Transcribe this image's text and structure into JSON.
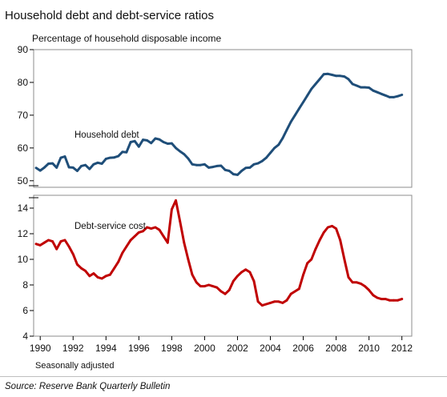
{
  "chart_data": {
    "type": "line",
    "title": "Household debt and debt-service ratios",
    "ylabel": "Percentage of household disposable income",
    "note": "Seasonally adjusted",
    "source": "Source: Reserve Bank Quarterly Bulletin",
    "colors": {
      "debt": "#1f4e79",
      "service": "#c00000",
      "axis": "#000000",
      "frame": "#8c8c8c"
    },
    "x_ticks": [
      1990,
      1992,
      1994,
      1996,
      1998,
      2000,
      2002,
      2004,
      2006,
      2008,
      2010,
      2012
    ],
    "xlim": [
      1989.6,
      2012.6
    ],
    "panels": [
      {
        "name": "debt",
        "ylim": [
          48,
          90
        ],
        "y_ticks": [
          50,
          60,
          70,
          80,
          90
        ],
        "series": [
          {
            "name": "Household debt",
            "x": [
              1989.75,
              1990,
              1990.25,
              1990.5,
              1990.75,
              1991,
              1991.25,
              1991.5,
              1991.75,
              1992,
              1992.25,
              1992.5,
              1992.75,
              1993,
              1993.25,
              1993.5,
              1993.75,
              1994,
              1994.25,
              1994.5,
              1994.75,
              1995,
              1995.25,
              1995.5,
              1995.75,
              1996,
              1996.25,
              1996.5,
              1996.75,
              1997,
              1997.25,
              1997.5,
              1997.75,
              1998,
              1998.25,
              1998.5,
              1998.75,
              1999,
              1999.25,
              1999.5,
              1999.75,
              2000,
              2000.25,
              2000.5,
              2000.75,
              2001,
              2001.25,
              2001.5,
              2001.75,
              2002,
              2002.25,
              2002.5,
              2002.75,
              2003,
              2003.25,
              2003.5,
              2003.75,
              2004,
              2004.25,
              2004.5,
              2004.75,
              2005,
              2005.25,
              2005.5,
              2005.75,
              2006,
              2006.25,
              2006.5,
              2006.75,
              2007,
              2007.25,
              2007.5,
              2007.75,
              2008,
              2008.25,
              2008.5,
              2008.75,
              2009,
              2009.25,
              2009.5,
              2009.75,
              2010,
              2010.25,
              2010.5,
              2010.75,
              2011,
              2011.25,
              2011.5,
              2011.75,
              2012
            ],
            "values": [
              53.9,
              53.1,
              54.0,
              55.2,
              55.3,
              54.0,
              57.0,
              57.4,
              54.1,
              54.0,
              53.0,
              54.5,
              54.8,
              53.6,
              55.0,
              55.5,
              55.2,
              56.7,
              57.0,
              57.1,
              57.5,
              58.8,
              58.7,
              61.8,
              62.1,
              60.4,
              62.5,
              62.3,
              61.5,
              62.9,
              62.6,
              61.8,
              61.3,
              61.4,
              60.0,
              59.0,
              58.1,
              56.8,
              55.0,
              54.8,
              54.8,
              55.0,
              54.0,
              54.2,
              54.5,
              54.6,
              53.3,
              53.0,
              52.0,
              51.8,
              53.0,
              53.9,
              54.0,
              55.0,
              55.3,
              56.0,
              57.0,
              58.5,
              60.0,
              61.0,
              63.0,
              65.5,
              68.0,
              70.0,
              72.0,
              74.0,
              76.0,
              78.0,
              79.5,
              81.0,
              82.5,
              82.6,
              82.3,
              82.0,
              82.0,
              81.8,
              81.0,
              79.5,
              79.0,
              78.5,
              78.5,
              78.4,
              77.5,
              77.0,
              76.5,
              76.0,
              75.5,
              75.5,
              75.8,
              76.2
            ]
          }
        ]
      },
      {
        "name": "service",
        "ylim": [
          4,
          15
        ],
        "y_ticks": [
          4,
          6,
          8,
          10,
          12,
          14
        ],
        "series": [
          {
            "name": "Debt-service cost",
            "x": [
              1989.75,
              1990,
              1990.25,
              1990.5,
              1990.75,
              1991,
              1991.25,
              1991.5,
              1991.75,
              1992,
              1992.25,
              1992.5,
              1992.75,
              1993,
              1993.25,
              1993.5,
              1993.75,
              1994,
              1994.25,
              1994.5,
              1994.75,
              1995,
              1995.25,
              1995.5,
              1995.75,
              1996,
              1996.25,
              1996.5,
              1996.75,
              1997,
              1997.25,
              1997.5,
              1997.75,
              1998,
              1998.25,
              1998.5,
              1998.75,
              1999,
              1999.25,
              1999.5,
              1999.75,
              2000,
              2000.25,
              2000.5,
              2000.75,
              2001,
              2001.25,
              2001.5,
              2001.75,
              2002,
              2002.25,
              2002.5,
              2002.75,
              2003,
              2003.25,
              2003.5,
              2003.75,
              2004,
              2004.25,
              2004.5,
              2004.75,
              2005,
              2005.25,
              2005.5,
              2005.75,
              2006,
              2006.25,
              2006.5,
              2006.75,
              2007,
              2007.25,
              2007.5,
              2007.75,
              2008,
              2008.25,
              2008.5,
              2008.75,
              2009,
              2009.25,
              2009.5,
              2009.75,
              2010,
              2010.25,
              2010.5,
              2010.75,
              2011,
              2011.25,
              2011.5,
              2011.75,
              2012
            ],
            "values": [
              11.2,
              11.1,
              11.3,
              11.5,
              11.4,
              10.8,
              11.4,
              11.5,
              11.0,
              10.4,
              9.6,
              9.3,
              9.1,
              8.7,
              8.9,
              8.6,
              8.5,
              8.7,
              8.8,
              9.3,
              9.8,
              10.5,
              11.0,
              11.5,
              11.8,
              12.1,
              12.2,
              12.5,
              12.4,
              12.5,
              12.3,
              11.8,
              11.3,
              13.9,
              14.6,
              13.0,
              11.3,
              10.0,
              8.8,
              8.2,
              7.9,
              7.9,
              8.0,
              7.9,
              7.8,
              7.5,
              7.3,
              7.6,
              8.3,
              8.7,
              9.0,
              9.2,
              9.0,
              8.3,
              6.7,
              6.4,
              6.5,
              6.6,
              6.7,
              6.7,
              6.6,
              6.8,
              7.3,
              7.5,
              7.7,
              8.8,
              9.7,
              10.0,
              10.8,
              11.5,
              12.1,
              12.5,
              12.6,
              12.4,
              11.5,
              10.0,
              8.6,
              8.2,
              8.2,
              8.1,
              7.9,
              7.6,
              7.2,
              7.0,
              6.9,
              6.9,
              6.8,
              6.8,
              6.8,
              6.9
            ]
          }
        ]
      }
    ]
  }
}
